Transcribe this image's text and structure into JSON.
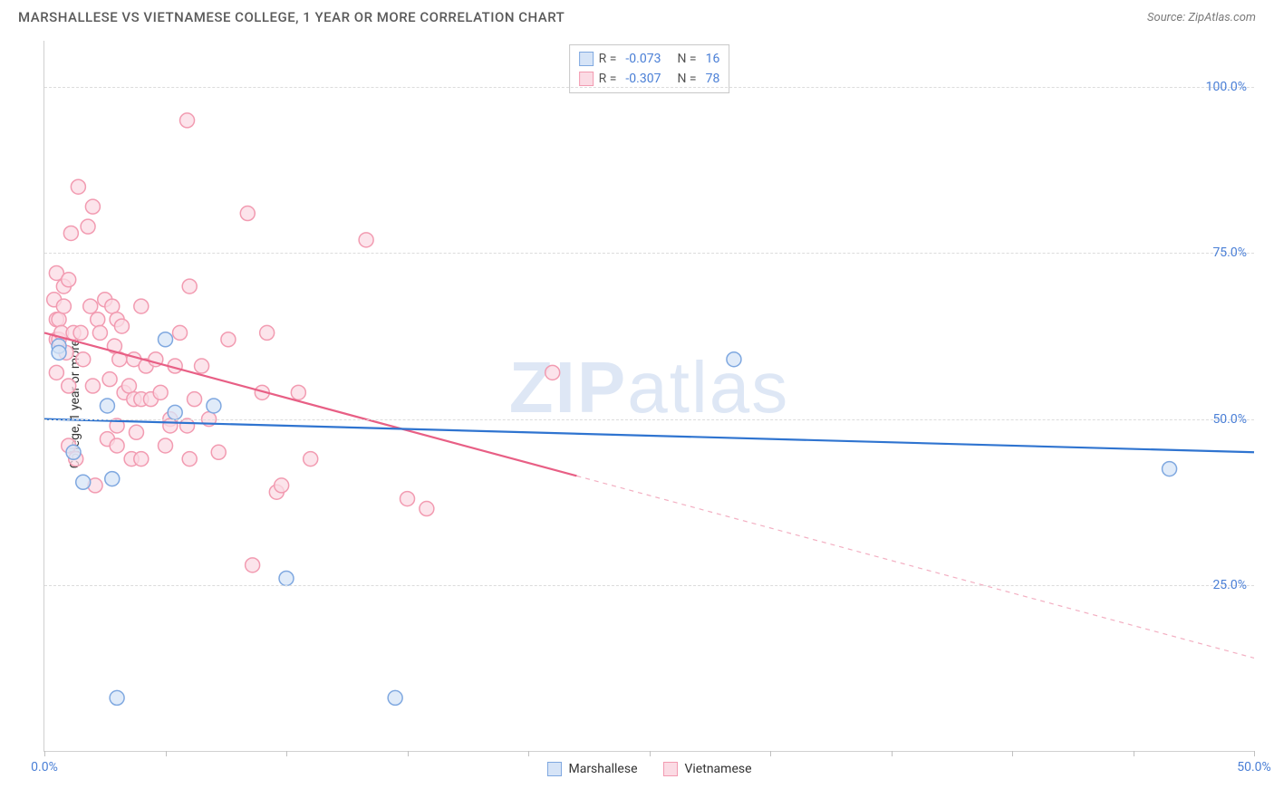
{
  "header": {
    "title": "MARSHALLESE VS VIETNAMESE COLLEGE, 1 YEAR OR MORE CORRELATION CHART",
    "source": "Source: ZipAtlas.com"
  },
  "chart": {
    "type": "scatter",
    "y_axis_label": "College, 1 year or more",
    "watermark_bold": "ZIP",
    "watermark_light": "atlas",
    "background_color": "#ffffff",
    "grid_color": "#dcdcdc",
    "axis_color": "#d0d0d0",
    "tick_label_color": "#4a7fd6",
    "xlim": [
      0,
      50
    ],
    "ylim": [
      0,
      107
    ],
    "x_ticks": [
      0,
      5,
      10,
      15,
      20,
      25,
      30,
      35,
      40,
      45,
      50
    ],
    "x_tick_labels": {
      "0": "0.0%",
      "50": "50.0%"
    },
    "y_gridlines": [
      25,
      50,
      75,
      100
    ],
    "y_tick_labels": {
      "25": "25.0%",
      "50": "50.0%",
      "75": "75.0%",
      "100": "100.0%"
    },
    "marker_radius": 8,
    "marker_stroke_width": 1.5,
    "series": {
      "marshallese": {
        "label": "Marshallese",
        "fill": "#d6e4f7",
        "stroke": "#7fa8e0",
        "line_color": "#2f74d0",
        "line_width": 2.2,
        "trend": {
          "x1": 0,
          "y1": 50,
          "x2": 50,
          "y2": 45
        },
        "trend_solid_until_x": 50,
        "R": "-0.073",
        "N": "16",
        "points": [
          {
            "x": 0.6,
            "y": 61
          },
          {
            "x": 0.6,
            "y": 60
          },
          {
            "x": 1.2,
            "y": 45
          },
          {
            "x": 1.6,
            "y": 40.5
          },
          {
            "x": 2.6,
            "y": 52
          },
          {
            "x": 2.8,
            "y": 41
          },
          {
            "x": 3.0,
            "y": 8
          },
          {
            "x": 5.0,
            "y": 62
          },
          {
            "x": 5.4,
            "y": 51
          },
          {
            "x": 7.0,
            "y": 52
          },
          {
            "x": 10.0,
            "y": 26
          },
          {
            "x": 14.5,
            "y": 8
          },
          {
            "x": 28.5,
            "y": 59
          },
          {
            "x": 46.5,
            "y": 42.5
          }
        ]
      },
      "vietnamese": {
        "label": "Vietnamese",
        "fill": "#fbdbe4",
        "stroke": "#f29bb1",
        "line_color": "#e85f85",
        "line_width": 2.2,
        "trend": {
          "x1": 0,
          "y1": 63,
          "x2": 50,
          "y2": 14
        },
        "trend_solid_until_x": 22,
        "R": "-0.307",
        "N": "78",
        "points": [
          {
            "x": 0.4,
            "y": 68
          },
          {
            "x": 0.5,
            "y": 65
          },
          {
            "x": 0.5,
            "y": 62
          },
          {
            "x": 0.5,
            "y": 57
          },
          {
            "x": 0.5,
            "y": 72
          },
          {
            "x": 0.6,
            "y": 62
          },
          {
            "x": 0.6,
            "y": 65
          },
          {
            "x": 0.7,
            "y": 63
          },
          {
            "x": 0.8,
            "y": 70
          },
          {
            "x": 0.8,
            "y": 67
          },
          {
            "x": 0.9,
            "y": 60
          },
          {
            "x": 1.0,
            "y": 71
          },
          {
            "x": 1.0,
            "y": 55
          },
          {
            "x": 1.0,
            "y": 46
          },
          {
            "x": 1.1,
            "y": 78
          },
          {
            "x": 1.2,
            "y": 63
          },
          {
            "x": 1.3,
            "y": 44
          },
          {
            "x": 1.4,
            "y": 85
          },
          {
            "x": 1.5,
            "y": 63
          },
          {
            "x": 1.6,
            "y": 59
          },
          {
            "x": 1.8,
            "y": 79
          },
          {
            "x": 1.9,
            "y": 67
          },
          {
            "x": 2.0,
            "y": 82
          },
          {
            "x": 2.0,
            "y": 55
          },
          {
            "x": 2.1,
            "y": 40
          },
          {
            "x": 2.2,
            "y": 65
          },
          {
            "x": 2.3,
            "y": 63
          },
          {
            "x": 2.5,
            "y": 68
          },
          {
            "x": 2.6,
            "y": 47
          },
          {
            "x": 2.7,
            "y": 56
          },
          {
            "x": 2.8,
            "y": 67
          },
          {
            "x": 2.9,
            "y": 61
          },
          {
            "x": 3.0,
            "y": 65
          },
          {
            "x": 3.0,
            "y": 49
          },
          {
            "x": 3.0,
            "y": 46
          },
          {
            "x": 3.1,
            "y": 59
          },
          {
            "x": 3.2,
            "y": 64
          },
          {
            "x": 3.3,
            "y": 54
          },
          {
            "x": 3.5,
            "y": 55
          },
          {
            "x": 3.6,
            "y": 44
          },
          {
            "x": 3.7,
            "y": 59
          },
          {
            "x": 3.7,
            "y": 53
          },
          {
            "x": 3.8,
            "y": 48
          },
          {
            "x": 4.0,
            "y": 67
          },
          {
            "x": 4.0,
            "y": 53
          },
          {
            "x": 4.0,
            "y": 44
          },
          {
            "x": 4.2,
            "y": 58
          },
          {
            "x": 4.4,
            "y": 53
          },
          {
            "x": 4.6,
            "y": 59
          },
          {
            "x": 4.8,
            "y": 54
          },
          {
            "x": 5.0,
            "y": 46
          },
          {
            "x": 5.2,
            "y": 50
          },
          {
            "x": 5.2,
            "y": 49
          },
          {
            "x": 5.4,
            "y": 58
          },
          {
            "x": 5.6,
            "y": 63
          },
          {
            "x": 5.9,
            "y": 95
          },
          {
            "x": 5.9,
            "y": 49
          },
          {
            "x": 6.0,
            "y": 44
          },
          {
            "x": 6.0,
            "y": 70
          },
          {
            "x": 6.2,
            "y": 53
          },
          {
            "x": 6.5,
            "y": 58
          },
          {
            "x": 6.8,
            "y": 50
          },
          {
            "x": 7.2,
            "y": 45
          },
          {
            "x": 7.6,
            "y": 62
          },
          {
            "x": 8.4,
            "y": 81
          },
          {
            "x": 8.6,
            "y": 28
          },
          {
            "x": 9.0,
            "y": 54
          },
          {
            "x": 9.2,
            "y": 63
          },
          {
            "x": 9.6,
            "y": 39
          },
          {
            "x": 9.8,
            "y": 40
          },
          {
            "x": 10.5,
            "y": 54
          },
          {
            "x": 11.0,
            "y": 44
          },
          {
            "x": 13.3,
            "y": 77
          },
          {
            "x": 15.0,
            "y": 38
          },
          {
            "x": 15.8,
            "y": 36.5
          },
          {
            "x": 21.0,
            "y": 57
          }
        ]
      }
    }
  }
}
